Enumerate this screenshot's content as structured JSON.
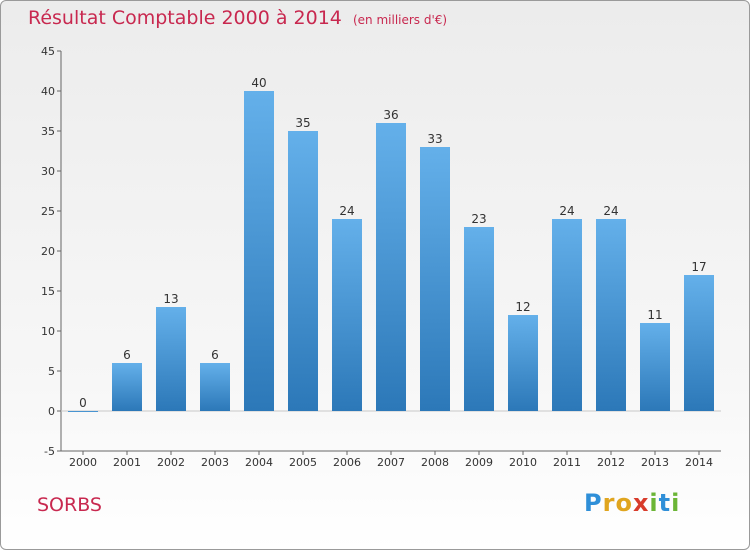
{
  "chart_data": {
    "type": "bar",
    "title": "Résultat Comptable 2000 à 2014",
    "subtitle": "(en milliers d'€)",
    "categories": [
      "2000",
      "2001",
      "2002",
      "2003",
      "2004",
      "2005",
      "2006",
      "2007",
      "2008",
      "2009",
      "2010",
      "2011",
      "2012",
      "2013",
      "2014"
    ],
    "values": [
      0,
      6,
      13,
      6,
      40,
      35,
      24,
      36,
      33,
      23,
      12,
      24,
      24,
      11,
      17
    ],
    "ylim": [
      -5,
      45
    ],
    "yticks": [
      -5,
      0,
      5,
      10,
      15,
      20,
      25,
      30,
      35,
      40,
      45
    ],
    "xlabel": "",
    "ylabel": "",
    "grid": false,
    "bar_color_top": "#64b0ea",
    "bar_color_bottom": "#2c78b8"
  },
  "place_name": "SORBS",
  "logo": {
    "letters": [
      "P",
      "r",
      "o",
      "x",
      "i",
      "t",
      "i"
    ],
    "colors": [
      "#2f8fd8",
      "#e0a51f",
      "#e0a51f",
      "#d83b2b",
      "#6bb536",
      "#2f8fd8",
      "#6bb536"
    ]
  }
}
